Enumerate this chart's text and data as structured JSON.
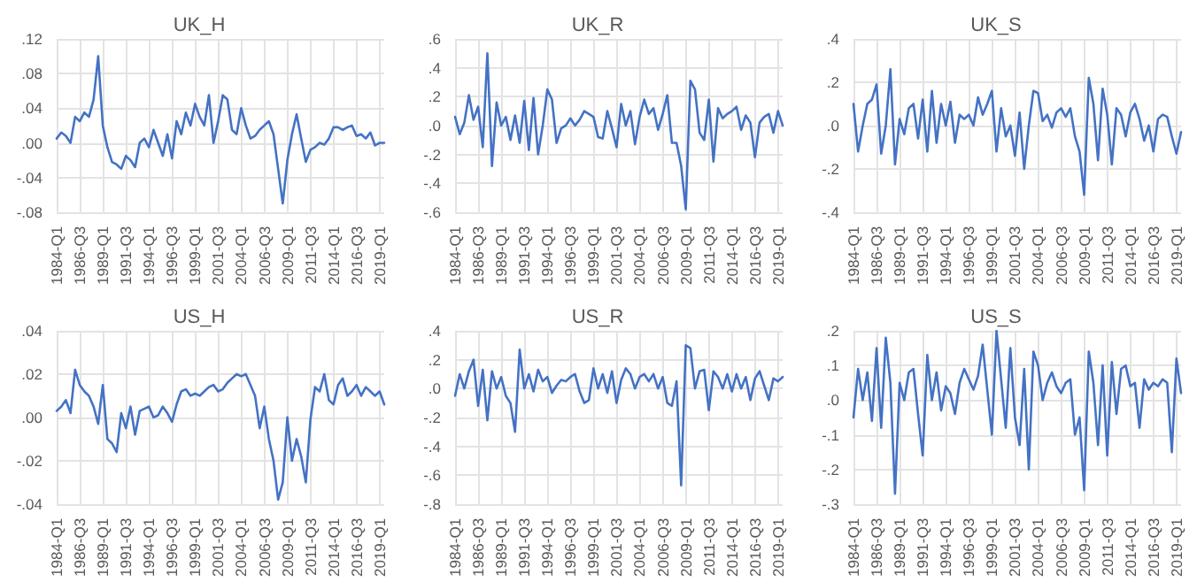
{
  "chart_data": [
    {
      "type": "line",
      "title": "UK_H",
      "marker": "none",
      "line_style": "solid",
      "grid": true,
      "categories": [
        "1984-Q1",
        null,
        null,
        null,
        null,
        "1986-Q3",
        null,
        null,
        null,
        null,
        "1989-Q1",
        null,
        null,
        null,
        null,
        "1991-Q3",
        null,
        null,
        null,
        null,
        "1994-Q1",
        null,
        null,
        null,
        null,
        "1996-Q3",
        null,
        null,
        null,
        null,
        "1999-Q1",
        null,
        null,
        null,
        null,
        "2001-Q3",
        null,
        null,
        null,
        null,
        "2004-Q1",
        null,
        null,
        null,
        null,
        "2006-Q3",
        null,
        null,
        null,
        null,
        "2009-Q1",
        null,
        null,
        null,
        null,
        "2011-Q3",
        null,
        null,
        null,
        null,
        "2014-Q1",
        null,
        null,
        null,
        null,
        "2016-Q3",
        null,
        null,
        null,
        null,
        "2019-Q1",
        null
      ],
      "ylim": [
        -0.08,
        0.12
      ],
      "yticks": [
        {
          "value": -0.08,
          "label": "-.08"
        },
        {
          "value": -0.04,
          "label": "-.04"
        },
        {
          "value": 0,
          "label": ".00"
        },
        {
          "value": 0.04,
          "label": ".04"
        },
        {
          "value": 0.08,
          "label": ".08"
        },
        {
          "value": 0.12,
          "label": ".12"
        }
      ],
      "series": [
        {
          "color": "#4472c4",
          "values": [
            0.005,
            0.012,
            0.008,
            0,
            0.03,
            0.025,
            0.035,
            0.03,
            0.05,
            0.1,
            0.02,
            -0.005,
            -0.022,
            -0.025,
            -0.03,
            -0.015,
            -0.02,
            -0.028,
            0,
            0.005,
            -0.005,
            0.015,
            0,
            -0.015,
            0.01,
            -0.018,
            0.025,
            0.01,
            0.035,
            0.02,
            0.045,
            0.03,
            0.02,
            0.055,
            0,
            0.025,
            0.055,
            0.05,
            0.015,
            0.01,
            0.04,
            0.02,
            0.005,
            0.008,
            0.015,
            0.02,
            0.025,
            0.01,
            -0.03,
            -0.07,
            -0.02,
            0.01,
            0.033,
            0.005,
            -0.022,
            -0.008,
            -0.005,
            0,
            -0.002,
            0.005,
            0.018,
            0.018,
            0.015,
            0.018,
            0.02,
            0.008,
            0.01,
            0.005,
            0.012,
            -0.003,
            0,
            0
          ]
        }
      ]
    },
    {
      "type": "line",
      "title": "UK_R",
      "marker": "none",
      "line_style": "solid",
      "grid": true,
      "categories": [
        "1984-Q1",
        null,
        null,
        null,
        null,
        "1986-Q3",
        null,
        null,
        null,
        null,
        "1989-Q1",
        null,
        null,
        null,
        null,
        "1991-Q3",
        null,
        null,
        null,
        null,
        "1994-Q1",
        null,
        null,
        null,
        null,
        "1996-Q3",
        null,
        null,
        null,
        null,
        "1999-Q1",
        null,
        null,
        null,
        null,
        "2001-Q3",
        null,
        null,
        null,
        null,
        "2004-Q1",
        null,
        null,
        null,
        null,
        "2006-Q3",
        null,
        null,
        null,
        null,
        "2009-Q1",
        null,
        null,
        null,
        null,
        "2011-Q3",
        null,
        null,
        null,
        null,
        "2014-Q1",
        null,
        null,
        null,
        null,
        "2016-Q3",
        null,
        null,
        null,
        null,
        "2019-Q1",
        null
      ],
      "ylim": [
        -0.6,
        0.6
      ],
      "yticks": [
        {
          "value": -0.6,
          "label": "-.6"
        },
        {
          "value": -0.4,
          "label": "-.4"
        },
        {
          "value": -0.2,
          "label": "-.2"
        },
        {
          "value": 0,
          "label": ".0"
        },
        {
          "value": 0.2,
          "label": ".2"
        },
        {
          "value": 0.4,
          "label": ".4"
        },
        {
          "value": 0.6,
          "label": ".6"
        }
      ],
      "series": [
        {
          "color": "#4472c4",
          "values": [
            0.06,
            -0.06,
            0.02,
            0.21,
            0.04,
            0.13,
            -0.15,
            0.5,
            -0.28,
            0.16,
            0,
            0.06,
            -0.1,
            0.07,
            -0.12,
            0.17,
            -0.17,
            0.19,
            -0.2,
            0,
            0.25,
            0.18,
            -0.12,
            -0.02,
            0,
            0.05,
            0,
            0.04,
            0.1,
            0.08,
            0.06,
            -0.08,
            -0.09,
            0.1,
            -0.02,
            -0.15,
            0.15,
            0,
            0.1,
            -0.13,
            0.06,
            0.18,
            0.08,
            0.12,
            -0.03,
            0.08,
            0.21,
            -0.12,
            -0.12,
            -0.28,
            -0.58,
            0.31,
            0.25,
            -0.05,
            -0.1,
            0.18,
            -0.25,
            0.12,
            0.05,
            0.08,
            0.1,
            0.13,
            -0.03,
            0.07,
            0.02,
            -0.22,
            0.02,
            0.06,
            0.08,
            -0.05,
            0.1,
            0
          ]
        }
      ]
    },
    {
      "type": "line",
      "title": "UK_S",
      "marker": "none",
      "line_style": "solid",
      "grid": true,
      "categories": [
        "1984-Q1",
        null,
        null,
        null,
        null,
        "1986-Q3",
        null,
        null,
        null,
        null,
        "1989-Q1",
        null,
        null,
        null,
        null,
        "1991-Q3",
        null,
        null,
        null,
        null,
        "1994-Q1",
        null,
        null,
        null,
        null,
        "1996-Q3",
        null,
        null,
        null,
        null,
        "1999-Q1",
        null,
        null,
        null,
        null,
        "2001-Q3",
        null,
        null,
        null,
        null,
        "2004-Q1",
        null,
        null,
        null,
        null,
        "2006-Q3",
        null,
        null,
        null,
        null,
        "2009-Q1",
        null,
        null,
        null,
        null,
        "2011-Q3",
        null,
        null,
        null,
        null,
        "2014-Q1",
        null,
        null,
        null,
        null,
        "2016-Q3",
        null,
        null,
        null,
        null,
        "2019-Q1",
        null
      ],
      "ylim": [
        -0.4,
        0.4
      ],
      "yticks": [
        {
          "value": -0.4,
          "label": "-.4"
        },
        {
          "value": -0.2,
          "label": "-.2"
        },
        {
          "value": 0,
          "label": ".0"
        },
        {
          "value": 0.2,
          "label": ".2"
        },
        {
          "value": 0.4,
          "label": ".4"
        }
      ],
      "series": [
        {
          "color": "#4472c4",
          "values": [
            0.1,
            -0.12,
            0,
            0.1,
            0.12,
            0.19,
            -0.13,
            0,
            0.26,
            -0.18,
            0.03,
            -0.04,
            0.08,
            0.1,
            -0.06,
            0.12,
            -0.12,
            0.16,
            -0.08,
            0.1,
            0,
            0.11,
            -0.08,
            0.05,
            0.03,
            0.05,
            0,
            0.13,
            0.05,
            0.1,
            0.16,
            -0.12,
            0.08,
            -0.05,
            0,
            -0.14,
            0.06,
            -0.2,
            0,
            0.16,
            0.15,
            0.02,
            0.05,
            -0.01,
            0.06,
            0.08,
            0.04,
            0.08,
            -0.05,
            -0.12,
            -0.32,
            0.22,
            0.1,
            -0.16,
            0.17,
            0.05,
            -0.18,
            0.08,
            0.05,
            -0.05,
            0.06,
            0.1,
            0.03,
            -0.07,
            0,
            -0.12,
            0.03,
            0.05,
            0.04,
            -0.05,
            -0.13,
            -0.03
          ]
        }
      ]
    },
    {
      "type": "line",
      "title": "US_H",
      "marker": "none",
      "line_style": "solid",
      "grid": true,
      "categories": [
        "1984-Q1",
        null,
        null,
        null,
        null,
        "1986-Q3",
        null,
        null,
        null,
        null,
        "1989-Q1",
        null,
        null,
        null,
        null,
        "1991-Q3",
        null,
        null,
        null,
        null,
        "1994-Q1",
        null,
        null,
        null,
        null,
        "1996-Q3",
        null,
        null,
        null,
        null,
        "1999-Q1",
        null,
        null,
        null,
        null,
        "2001-Q3",
        null,
        null,
        null,
        null,
        "2004-Q1",
        null,
        null,
        null,
        null,
        "2006-Q3",
        null,
        null,
        null,
        null,
        "2009-Q1",
        null,
        null,
        null,
        null,
        "2011-Q3",
        null,
        null,
        null,
        null,
        "2014-Q1",
        null,
        null,
        null,
        null,
        "2016-Q3",
        null,
        null,
        null,
        null,
        "2019-Q1",
        null
      ],
      "ylim": [
        -0.04,
        0.04
      ],
      "yticks": [
        {
          "value": -0.04,
          "label": "-.04"
        },
        {
          "value": -0.02,
          "label": "-.02"
        },
        {
          "value": 0,
          "label": ".00"
        },
        {
          "value": 0.02,
          "label": ".02"
        },
        {
          "value": 0.04,
          "label": ".04"
        }
      ],
      "series": [
        {
          "color": "#4472c4",
          "values": [
            0.003,
            0.005,
            0.008,
            0.002,
            0.022,
            0.015,
            0.012,
            0.01,
            0.005,
            -0.003,
            0.015,
            -0.01,
            -0.012,
            -0.016,
            0.002,
            -0.005,
            0.005,
            -0.008,
            0.003,
            0.004,
            0.005,
            0,
            0.001,
            0.005,
            0.002,
            -0.002,
            0.006,
            0.012,
            0.013,
            0.01,
            0.011,
            0.01,
            0.012,
            0.014,
            0.015,
            0.012,
            0.013,
            0.016,
            0.018,
            0.02,
            0.019,
            0.02,
            0.015,
            0.01,
            -0.005,
            0.005,
            -0.01,
            -0.02,
            -0.038,
            -0.03,
            0,
            -0.02,
            -0.01,
            -0.018,
            -0.03,
            -0.001,
            0.014,
            0.012,
            0.02,
            0.008,
            0.006,
            0.015,
            0.018,
            0.01,
            0.012,
            0.015,
            0.01,
            0.014,
            0.012,
            0.01,
            0.012,
            0.006
          ]
        }
      ]
    },
    {
      "type": "line",
      "title": "US_R",
      "marker": "none",
      "line_style": "solid",
      "grid": true,
      "categories": [
        "1984-Q1",
        null,
        null,
        null,
        null,
        "1986-Q3",
        null,
        null,
        null,
        null,
        "1989-Q1",
        null,
        null,
        null,
        null,
        "1991-Q3",
        null,
        null,
        null,
        null,
        "1994-Q1",
        null,
        null,
        null,
        null,
        "1996-Q3",
        null,
        null,
        null,
        null,
        "1999-Q1",
        null,
        null,
        null,
        null,
        "2001-Q3",
        null,
        null,
        null,
        null,
        "2004-Q1",
        null,
        null,
        null,
        null,
        "2006-Q3",
        null,
        null,
        null,
        null,
        "2009-Q1",
        null,
        null,
        null,
        null,
        "2011-Q3",
        null,
        null,
        null,
        null,
        "2014-Q1",
        null,
        null,
        null,
        null,
        "2016-Q3",
        null,
        null,
        null,
        null,
        "2019-Q1",
        null
      ],
      "ylim": [
        -0.8,
        0.4
      ],
      "yticks": [
        {
          "value": -0.8,
          "label": "-.8"
        },
        {
          "value": -0.6,
          "label": "-.6"
        },
        {
          "value": -0.4,
          "label": "-.4"
        },
        {
          "value": -0.2,
          "label": "-.2"
        },
        {
          "value": 0,
          "label": ".0"
        },
        {
          "value": 0.2,
          "label": ".2"
        },
        {
          "value": 0.4,
          "label": ".4"
        }
      ],
      "series": [
        {
          "color": "#4472c4",
          "values": [
            -0.05,
            0.1,
            0,
            0.12,
            0.2,
            -0.12,
            0.13,
            -0.22,
            0.12,
            0,
            0.08,
            -0.05,
            -0.1,
            -0.3,
            0.27,
            0,
            0.1,
            -0.02,
            0.13,
            0.05,
            0.08,
            -0.03,
            0.02,
            0.06,
            0.05,
            0.08,
            0.1,
            -0.02,
            -0.1,
            -0.08,
            0.14,
            0,
            0.1,
            -0.03,
            0.12,
            -0.1,
            0.06,
            0.14,
            0.1,
            0,
            0.08,
            0.1,
            0.05,
            0.1,
            0,
            0.08,
            -0.1,
            -0.12,
            0.05,
            -0.67,
            0.3,
            0.28,
            0,
            0.12,
            0.13,
            -0.15,
            0.12,
            0.08,
            0,
            0.1,
            -0.02,
            0.1,
            0,
            0.08,
            -0.08,
            0.07,
            0.12,
            0.02,
            -0.08,
            0.07,
            0.05,
            0.08
          ]
        }
      ]
    },
    {
      "type": "line",
      "title": "US_S",
      "marker": "none",
      "line_style": "solid",
      "grid": true,
      "categories": [
        "1984-Q1",
        null,
        null,
        null,
        null,
        "1986-Q3",
        null,
        null,
        null,
        null,
        "1989-Q1",
        null,
        null,
        null,
        null,
        "1991-Q3",
        null,
        null,
        null,
        null,
        "1994-Q1",
        null,
        null,
        null,
        null,
        "1996-Q3",
        null,
        null,
        null,
        null,
        "1999-Q1",
        null,
        null,
        null,
        null,
        "2001-Q3",
        null,
        null,
        null,
        null,
        "2004-Q1",
        null,
        null,
        null,
        null,
        "2006-Q3",
        null,
        null,
        null,
        null,
        "2009-Q1",
        null,
        null,
        null,
        null,
        "2011-Q3",
        null,
        null,
        null,
        null,
        "2014-Q1",
        null,
        null,
        null,
        null,
        "2016-Q3",
        null,
        null,
        null,
        null,
        "2019-Q1",
        null
      ],
      "ylim": [
        -0.3,
        0.2
      ],
      "yticks": [
        {
          "value": -0.3,
          "label": "-.3"
        },
        {
          "value": -0.2,
          "label": "-.2"
        },
        {
          "value": -0.1,
          "label": "-.1"
        },
        {
          "value": 0,
          "label": ".0"
        },
        {
          "value": 0.1,
          "label": ".1"
        },
        {
          "value": 0.2,
          "label": ".2"
        }
      ],
      "series": [
        {
          "color": "#4472c4",
          "values": [
            -0.05,
            0.09,
            0,
            0.08,
            -0.06,
            0.15,
            -0.08,
            0.18,
            0.05,
            -0.27,
            0.05,
            0,
            0.08,
            0.09,
            -0.04,
            -0.16,
            0.13,
            0,
            0.08,
            -0.03,
            0.04,
            0.02,
            -0.04,
            0.05,
            0.09,
            0.06,
            0.03,
            0.07,
            0.16,
            0.03,
            -0.1,
            0.2,
            0.06,
            -0.08,
            0.15,
            -0.05,
            -0.13,
            0.09,
            -0.2,
            0.14,
            0.1,
            0,
            0.05,
            0.08,
            0.04,
            0.02,
            0.05,
            0.06,
            -0.1,
            -0.05,
            -0.26,
            0.14,
            0.05,
            -0.13,
            0.1,
            -0.16,
            0.11,
            -0.04,
            0.09,
            0.1,
            0.04,
            0.05,
            -0.08,
            0.06,
            0.03,
            0.05,
            0.04,
            0.06,
            0.05,
            -0.15,
            0.12,
            0.02
          ]
        }
      ]
    }
  ]
}
